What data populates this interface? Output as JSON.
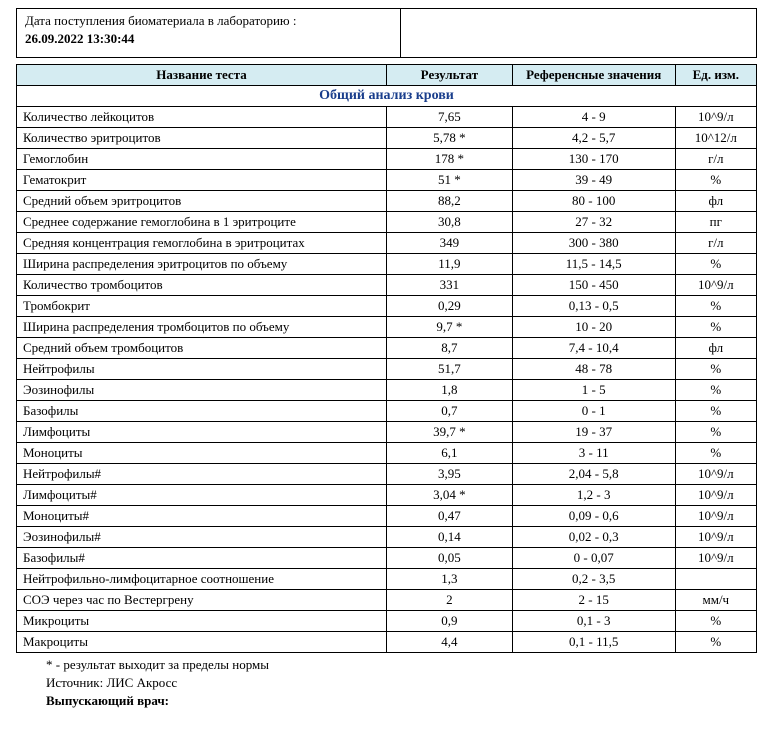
{
  "header_box": {
    "label": "Дата поступления биоматериала в лабораторию :",
    "value": "26.09.2022 13:30:44"
  },
  "columns": {
    "name": "Название теста",
    "result": "Результат",
    "ref": "Референсные значения",
    "unit": "Ед. изм."
  },
  "section_title": "Общий анализ крови",
  "rows": [
    {
      "name": "Количество лейкоцитов",
      "result": "7,65",
      "ref": "4 - 9",
      "unit": "10^9/л"
    },
    {
      "name": "Количество эритроцитов",
      "result": "5,78 *",
      "ref": "4,2 - 5,7",
      "unit": "10^12/л"
    },
    {
      "name": "Гемоглобин",
      "result": "178 *",
      "ref": "130 - 170",
      "unit": "г/л"
    },
    {
      "name": "Гематокрит",
      "result": "51 *",
      "ref": "39 - 49",
      "unit": "%"
    },
    {
      "name": "Средний объем эритроцитов",
      "result": "88,2",
      "ref": "80 - 100",
      "unit": "фл"
    },
    {
      "name": "Среднее содержание гемоглобина в 1 эритроците",
      "result": "30,8",
      "ref": "27 - 32",
      "unit": "пг"
    },
    {
      "name": "Средняя концентрация гемоглобина в эритроцитах",
      "result": "349",
      "ref": "300 - 380",
      "unit": "г/л"
    },
    {
      "name": "Ширина распределения эритроцитов по объему",
      "result": "11,9",
      "ref": "11,5 - 14,5",
      "unit": "%"
    },
    {
      "name": "Количество тромбоцитов",
      "result": "331",
      "ref": "150 - 450",
      "unit": "10^9/л"
    },
    {
      "name": "Тромбокрит",
      "result": "0,29",
      "ref": "0,13 - 0,5",
      "unit": "%"
    },
    {
      "name": "Ширина распределения тромбоцитов по объему",
      "result": "9,7 *",
      "ref": "10 - 20",
      "unit": "%"
    },
    {
      "name": "Средний объем тромбоцитов",
      "result": "8,7",
      "ref": "7,4 - 10,4",
      "unit": "фл"
    },
    {
      "name": "Нейтрофилы",
      "result": "51,7",
      "ref": "48 - 78",
      "unit": "%"
    },
    {
      "name": "Эозинофилы",
      "result": "1,8",
      "ref": "1 - 5",
      "unit": "%"
    },
    {
      "name": "Базофилы",
      "result": "0,7",
      "ref": "0 - 1",
      "unit": "%"
    },
    {
      "name": "Лимфоциты",
      "result": "39,7 *",
      "ref": "19 - 37",
      "unit": "%"
    },
    {
      "name": "Моноциты",
      "result": "6,1",
      "ref": "3 - 11",
      "unit": "%"
    },
    {
      "name": "Нейтрофилы#",
      "result": "3,95",
      "ref": "2,04 - 5,8",
      "unit": "10^9/л"
    },
    {
      "name": "Лимфоциты#",
      "result": "3,04 *",
      "ref": "1,2 - 3",
      "unit": "10^9/л"
    },
    {
      "name": "Моноциты#",
      "result": "0,47",
      "ref": "0,09 - 0,6",
      "unit": "10^9/л"
    },
    {
      "name": "Эозинофилы#",
      "result": "0,14",
      "ref": "0,02 - 0,3",
      "unit": "10^9/л"
    },
    {
      "name": "Базофилы#",
      "result": "0,05",
      "ref": "0 - 0,07",
      "unit": "10^9/л"
    },
    {
      "name": "Нейтрофильно-лимфоцитарное соотношение",
      "result": "1,3",
      "ref": "0,2 - 3,5",
      "unit": ""
    },
    {
      "name": "СОЭ через час по Вестергрену",
      "result": "2",
      "ref": "2 - 15",
      "unit": "мм/ч"
    },
    {
      "name": "Микроциты",
      "result": "0,9",
      "ref": "0,1 - 3",
      "unit": "%"
    },
    {
      "name": "Макроциты",
      "result": "4,4",
      "ref": "0,1 - 11,5",
      "unit": "%"
    }
  ],
  "footnotes": {
    "asterisk": "* - результат выходит за пределы нормы",
    "source": "Источник: ЛИС Акросс",
    "doctor": "Выпускающий врач:"
  }
}
